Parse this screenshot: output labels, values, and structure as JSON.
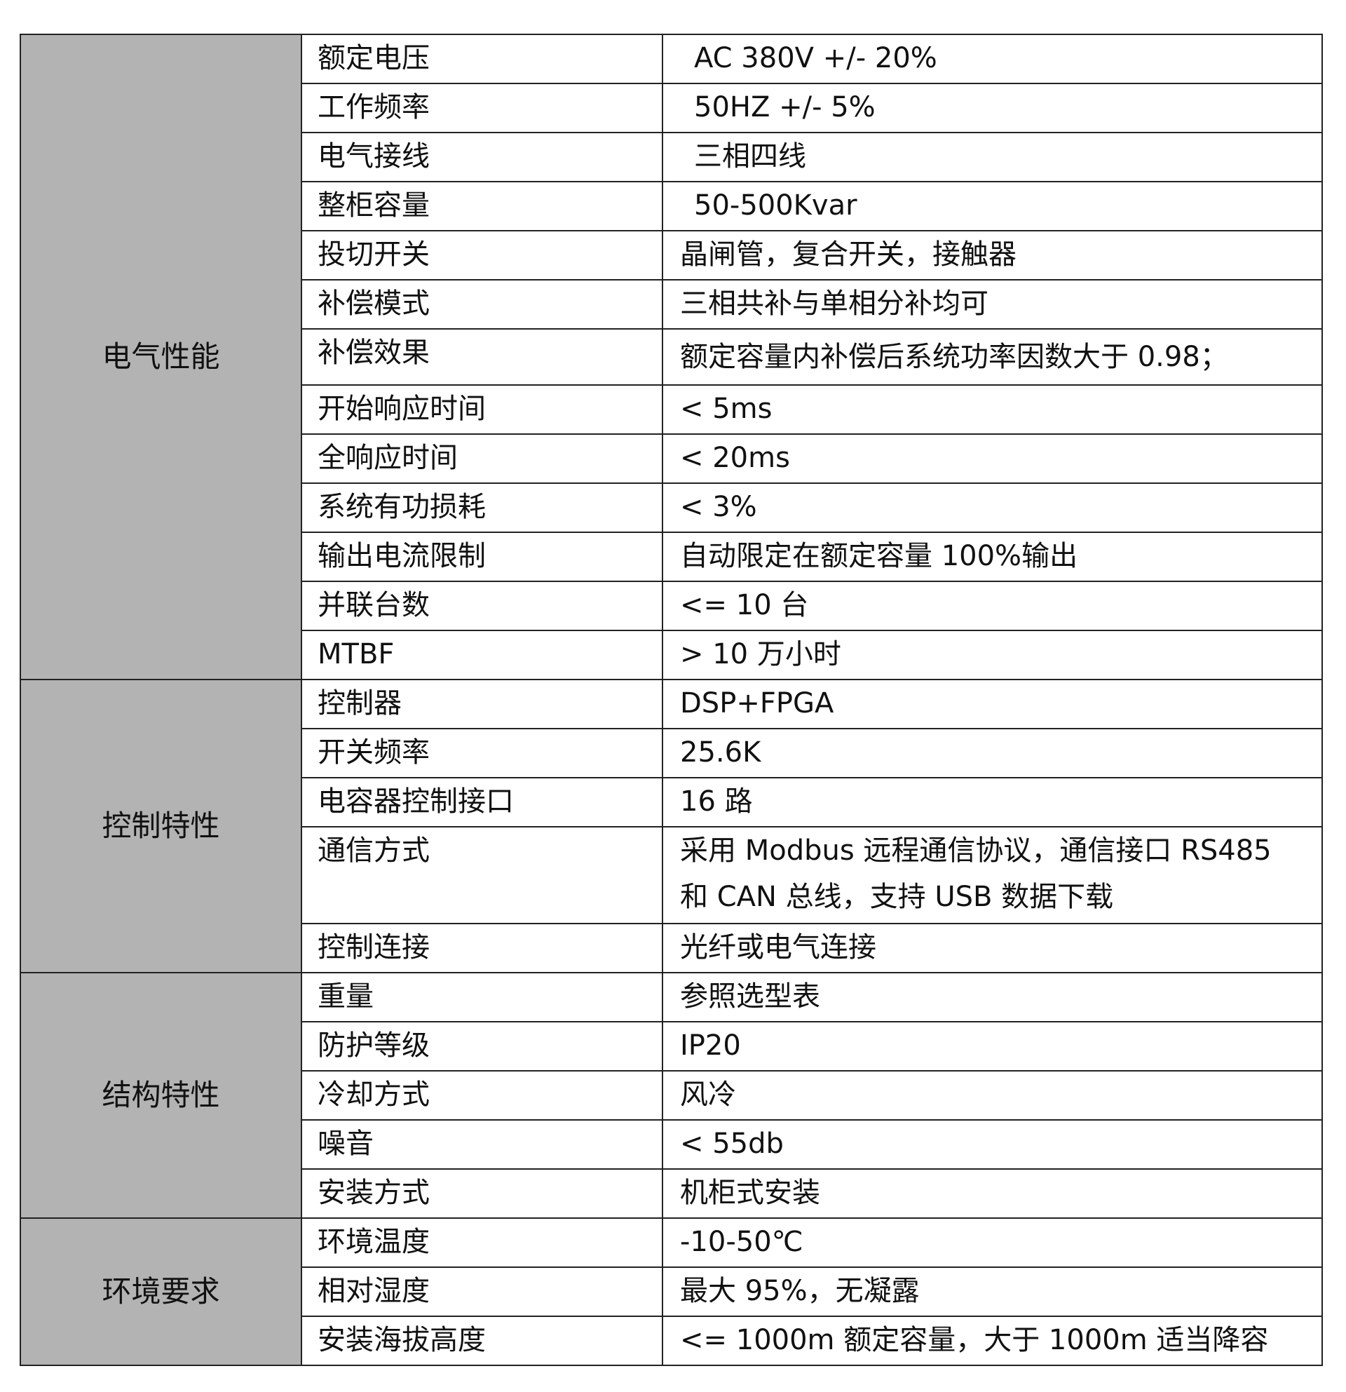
{
  "groups": [
    {
      "category": "电气性能",
      "rows": [
        {
          "label": "额定电压",
          "value": "AC 380V +/- 20%"
        },
        {
          "label": "工作频率",
          "value": "50HZ +/- 5%"
        },
        {
          "label": "电气接线",
          "value": "三相四线"
        },
        {
          "label": "整柜容量",
          "value": "50-500Kvar"
        },
        {
          "label": "投切开关",
          "value": "晶闸管，复合开关，接触器"
        },
        {
          "label": "补偿模式",
          "value": "三相共补与单相分补均可"
        },
        {
          "label": "补偿效果",
          "value": "额定容量内补偿后系统功率因数大于 0.98；"
        },
        {
          "label": "开始响应时间",
          "value": "< 5ms"
        },
        {
          "label": "全响应时间",
          "value": "< 20ms"
        },
        {
          "label": "系统有功损耗",
          "value": "< 3%"
        },
        {
          "label": "输出电流限制",
          "value": "自动限定在额定容量 100%输出"
        },
        {
          "label": "并联台数",
          "value": "<= 10 台"
        },
        {
          "label": "MTBF",
          "value": "> 10 万小时"
        }
      ]
    },
    {
      "category": "控制特性",
      "rows": [
        {
          "label": "控制器",
          "value": "DSP+FPGA"
        },
        {
          "label": "开关频率",
          "value": "25.6K"
        },
        {
          "label": "电容器控制接口",
          "value": "16 路"
        },
        {
          "label": "通信方式",
          "value": "采用 Modbus 远程通信协议，通信接口 RS485 和 CAN 总线，支持 USB 数据下载"
        },
        {
          "label": "控制连接",
          "value": "光纤或电气连接"
        }
      ]
    },
    {
      "category": "结构特性",
      "rows": [
        {
          "label": "重量",
          "value": "参照选型表"
        },
        {
          "label": "防护等级",
          "value": "IP20"
        },
        {
          "label": "冷却方式",
          "value": "风冷"
        },
        {
          "label": "噪音",
          "value": "< 55db"
        },
        {
          "label": "安装方式",
          "value": "机柜式安装"
        }
      ]
    },
    {
      "category": "环境要求",
      "rows": [
        {
          "label": "环境温度",
          "value": "-10-50℃"
        },
        {
          "label": "相对湿度",
          "value": "最大 95%，无凝露"
        },
        {
          "label": "安装海拔高度",
          "value": "<= 1000m  额定容量，大于 1000m 适当降容"
        }
      ]
    }
  ],
  "colors": {
    "category_bg": "#b3b3b3",
    "border": "#222222"
  }
}
